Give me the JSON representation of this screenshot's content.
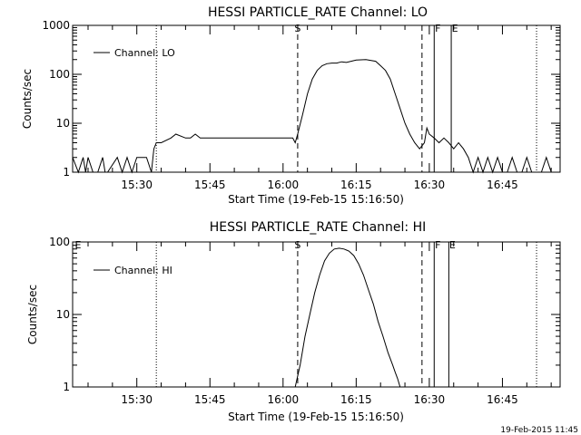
{
  "chart_data": [
    {
      "type": "line",
      "title": "HESSI PARTICLE_RATE Channel: LO",
      "xlabel": "Start Time (19-Feb-15 15:16:50)",
      "ylabel": "Counts/sec",
      "y_scale": "log",
      "ylim": [
        1,
        1000
      ],
      "xlim": [
        "15:16:50",
        "16:56:50"
      ],
      "ytick_labels": [
        "1",
        "10",
        "100",
        "1000"
      ],
      "ytick_values": [
        1,
        10,
        100,
        1000
      ],
      "xtick_labels": [
        "15:30",
        "15:45",
        "16:00",
        "16:15",
        "16:30",
        "16:45"
      ],
      "xtick_values": [
        "15:30",
        "15:45",
        "16:00",
        "16:15",
        "16:30",
        "16:45"
      ],
      "legend_placement": "top-left",
      "grid": false,
      "series": [
        {
          "name": "Channel: LO",
          "x": [
            "15:16:50",
            "15:18:00",
            "15:19:00",
            "15:19:30",
            "15:20:00",
            "15:21:00",
            "15:22:00",
            "15:23:00",
            "15:23:30",
            "15:24:00",
            "15:26:00",
            "15:27:00",
            "15:28:00",
            "15:29:00",
            "15:30:00",
            "15:31:00",
            "15:32:00",
            "15:33:00",
            "15:33:30",
            "15:34:00",
            "15:35:00",
            "15:37:00",
            "15:38:00",
            "15:40:00",
            "15:41:00",
            "15:42:00",
            "15:43:00",
            "15:44:00",
            "15:45:00",
            "15:47:00",
            "15:49:00",
            "15:51:00",
            "15:53:00",
            "15:55:00",
            "15:57:00",
            "15:59:00",
            "16:01:00",
            "16:02:00",
            "16:02:30",
            "16:03:00",
            "16:04:00",
            "16:05:00",
            "16:06:00",
            "16:07:00",
            "16:08:00",
            "16:09:00",
            "16:10:00",
            "16:11:00",
            "16:12:00",
            "16:13:00",
            "16:15:00",
            "16:17:00",
            "16:19:00",
            "16:20:00",
            "16:21:00",
            "16:22:00",
            "16:23:00",
            "16:24:00",
            "16:25:00",
            "16:26:00",
            "16:27:00",
            "16:28:00",
            "16:29:00",
            "16:29:30",
            "16:30:00",
            "16:31:00",
            "16:32:00",
            "16:33:00",
            "16:34:00",
            "16:35:00",
            "16:36:00",
            "16:37:00",
            "16:38:00",
            "16:39:00",
            "16:40:00",
            "16:41:00",
            "16:42:00",
            "16:43:00",
            "16:44:00",
            "16:45:00",
            "16:46:00",
            "16:47:00",
            "16:48:00",
            "16:49:00",
            "16:50:00",
            "16:51:00",
            "16:52:00",
            "16:53:00",
            "16:54:00",
            "16:55:00",
            "16:56:00"
          ],
          "y": [
            2,
            1,
            2,
            1,
            2,
            1,
            1,
            2,
            1,
            1,
            2,
            1,
            2,
            1,
            2,
            2,
            2,
            1,
            3,
            4,
            4,
            5,
            6,
            5,
            5,
            6,
            5,
            5,
            5,
            5,
            5,
            5,
            5,
            5,
            5,
            5,
            5,
            5,
            4,
            6,
            15,
            40,
            80,
            120,
            150,
            165,
            170,
            170,
            180,
            175,
            195,
            200,
            185,
            150,
            120,
            80,
            40,
            20,
            10,
            6,
            4,
            3,
            4,
            8,
            6,
            5,
            4,
            5,
            4,
            3,
            4,
            3,
            2,
            1,
            2,
            1,
            2,
            1,
            2,
            1,
            1,
            2,
            1,
            1,
            2,
            1,
            1,
            1,
            2,
            1,
            1
          ]
        }
      ],
      "annotations": [
        "S",
        "F",
        "E"
      ]
    },
    {
      "type": "line",
      "title": "HESSI PARTICLE_RATE Channel: HI",
      "xlabel": "Start Time (19-Feb-15 15:16:50)",
      "ylabel": "Counts/sec",
      "y_scale": "log",
      "ylim": [
        1,
        100
      ],
      "xlim": [
        "15:16:50",
        "16:56:50"
      ],
      "ytick_labels": [
        "1",
        "10",
        "100"
      ],
      "ytick_values": [
        1,
        10,
        100
      ],
      "xtick_labels": [
        "15:30",
        "15:45",
        "16:00",
        "16:15",
        "16:30",
        "16:45"
      ],
      "xtick_values": [
        "15:30",
        "15:45",
        "16:00",
        "16:15",
        "16:30",
        "16:45"
      ],
      "legend_placement": "top-left",
      "grid": false,
      "series": [
        {
          "name": "Channel: HI",
          "x": [
            "16:02:30",
            "16:03:30",
            "16:04:30",
            "16:05:30",
            "16:06:30",
            "16:07:30",
            "16:08:30",
            "16:09:30",
            "16:10:30",
            "16:11:30",
            "16:12:30",
            "16:13:30",
            "16:14:30",
            "16:15:30",
            "16:16:30",
            "16:17:30",
            "16:18:30",
            "16:19:30",
            "16:20:30",
            "16:21:30",
            "16:22:30",
            "16:23:00",
            "16:23:30",
            "16:24:00"
          ],
          "y": [
            1,
            2,
            5,
            10,
            20,
            35,
            55,
            70,
            80,
            82,
            80,
            75,
            65,
            50,
            35,
            22,
            14,
            8,
            5,
            3,
            2,
            1.6,
            1.3,
            1
          ]
        }
      ],
      "annotations": [
        "E",
        "S",
        "F",
        "E"
      ]
    }
  ],
  "footer": {
    "timestamp": "19-Feb-2015 11:45"
  }
}
